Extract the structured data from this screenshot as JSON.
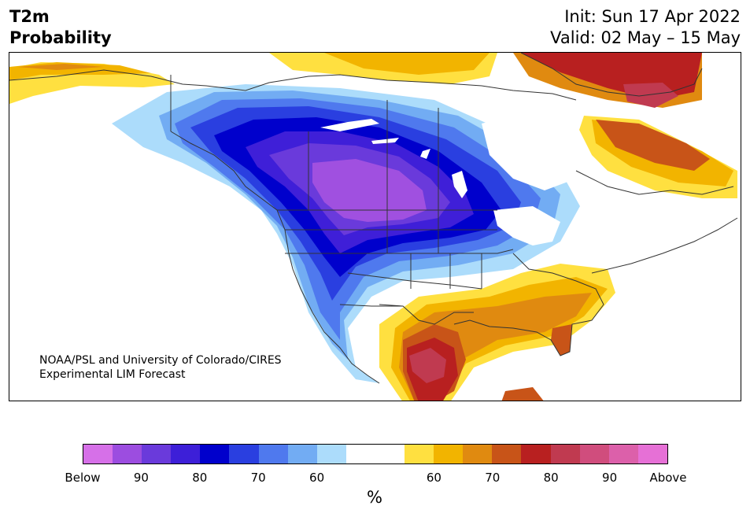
{
  "header": {
    "title_line1": "T2m",
    "title_line2": "Probability",
    "init_line": "Init: Sun 17 Apr 2022",
    "valid_line": "Valid: 02 May – 15 May"
  },
  "map": {
    "credit_line1": "NOAA/PSL and University of Colorado/CIRES",
    "credit_line2": "Experimental LIM Forecast",
    "below_colors": [
      "#a050e0",
      "#6a3adb",
      "#3f1fd8",
      "#0000cc",
      "#2a3fe0",
      "#4f79ee",
      "#72acf3",
      "#acdcfb"
    ],
    "above_colors": [
      "#ffe040",
      "#f2b400",
      "#e08a10",
      "#c85418",
      "#b82020",
      "#c03a50"
    ],
    "land_color": "#ffffff",
    "border_color": "#333333"
  },
  "colorbar": {
    "colors": [
      "#d670e8",
      "#9c4de0",
      "#6a3adb",
      "#3d1fd8",
      "#0000cc",
      "#2a3fe0",
      "#4f79ee",
      "#72acf3",
      "#acdcfb",
      "#ffffff",
      "#ffffff",
      "#ffe040",
      "#f2b400",
      "#e08a10",
      "#c85418",
      "#b82020",
      "#c03a50",
      "#d04d7d",
      "#dc60aa",
      "#e670d6"
    ],
    "ticks": [
      {
        "label": "Below",
        "frac": 0.0
      },
      {
        "label": "90",
        "frac": 0.1
      },
      {
        "label": "80",
        "frac": 0.2
      },
      {
        "label": "70",
        "frac": 0.3
      },
      {
        "label": "60",
        "frac": 0.4
      },
      {
        "label": "60",
        "frac": 0.6
      },
      {
        "label": "70",
        "frac": 0.7
      },
      {
        "label": "80",
        "frac": 0.8
      },
      {
        "label": "90",
        "frac": 0.9
      },
      {
        "label": "Above",
        "frac": 1.0
      }
    ],
    "unit": "%"
  }
}
